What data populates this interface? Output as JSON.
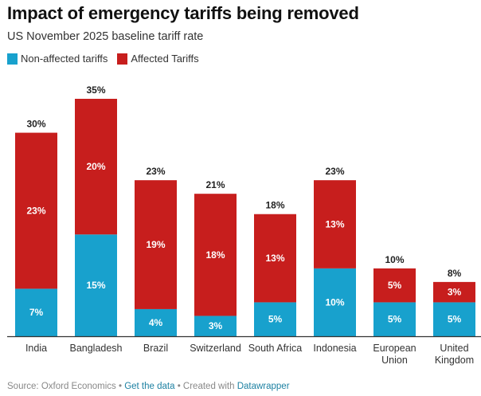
{
  "colors": {
    "non_affected": "#18a1cd",
    "affected": "#c71e1d"
  },
  "chart_data": {
    "type": "bar",
    "stacked": true,
    "title": "Impact of emergency tariffs being removed",
    "subtitle": "US November 2025 baseline tariff rate",
    "xlabel": "",
    "ylabel": "",
    "ylim": [
      0,
      35
    ],
    "legend_position": "top-left",
    "categories": [
      [
        "India"
      ],
      [
        "Bangladesh"
      ],
      [
        "Brazil"
      ],
      [
        "Switzerland"
      ],
      [
        "South Africa"
      ],
      [
        "Indonesia"
      ],
      [
        "European",
        "Union"
      ],
      [
        "United",
        "Kingdom"
      ]
    ],
    "series": [
      {
        "name": "Non-affected tariffs",
        "values": [
          7,
          15,
          4,
          3,
          5,
          10,
          5,
          5
        ]
      },
      {
        "name": "Affected Tariffs",
        "values": [
          23,
          20,
          19,
          18,
          13,
          13,
          5,
          3
        ]
      }
    ],
    "totals": [
      30,
      35,
      23,
      21,
      18,
      23,
      10,
      8
    ],
    "label_suffix": "%"
  },
  "footer": {
    "source": "Source: Oxford Economics",
    "sep": " • ",
    "get_data": "Get the data",
    "created": "Created with ",
    "tool": "Datawrapper"
  }
}
